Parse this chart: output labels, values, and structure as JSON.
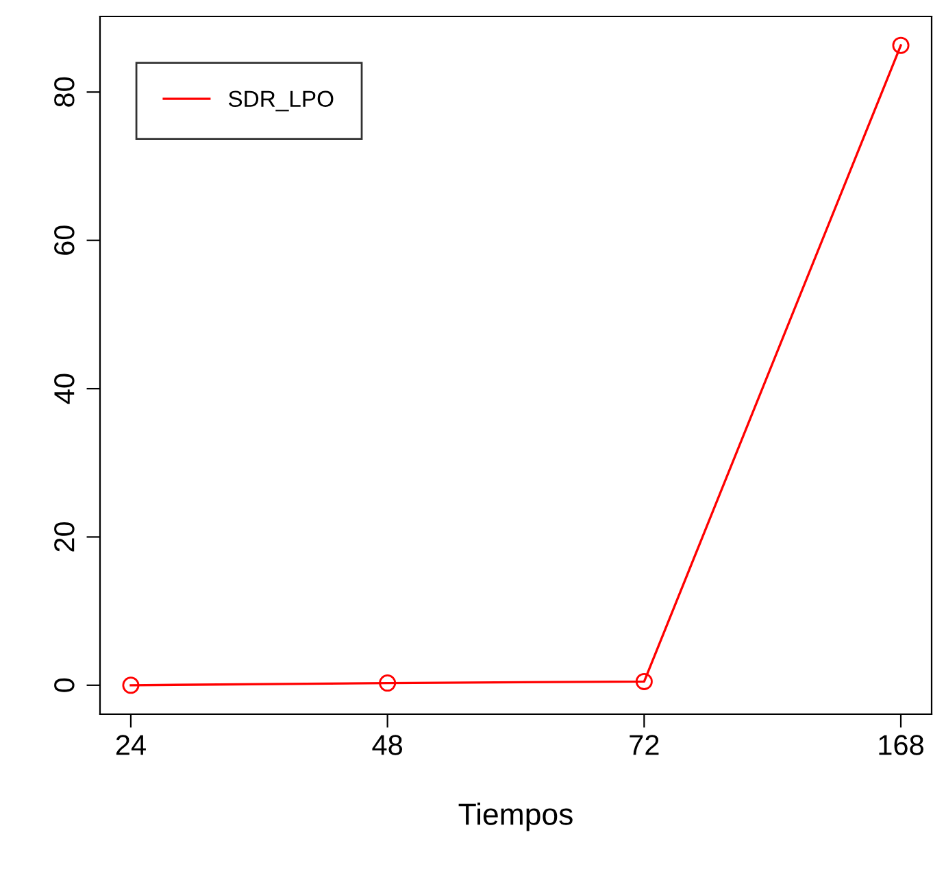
{
  "chart_data": {
    "type": "line",
    "xlabel": "Tiempos",
    "categories": [
      "24",
      "48",
      "72",
      "168"
    ],
    "series": [
      {
        "name": "SDR_LPO",
        "color": "#ff0000",
        "values": [
          0,
          0.3,
          0.5,
          86.3
        ]
      }
    ],
    "ylim": [
      -3.9,
      90.2
    ],
    "yticks": [
      0,
      20,
      40,
      60,
      80
    ],
    "marker": "circle",
    "line_style": "solid",
    "legend": "top left",
    "grid": false
  }
}
